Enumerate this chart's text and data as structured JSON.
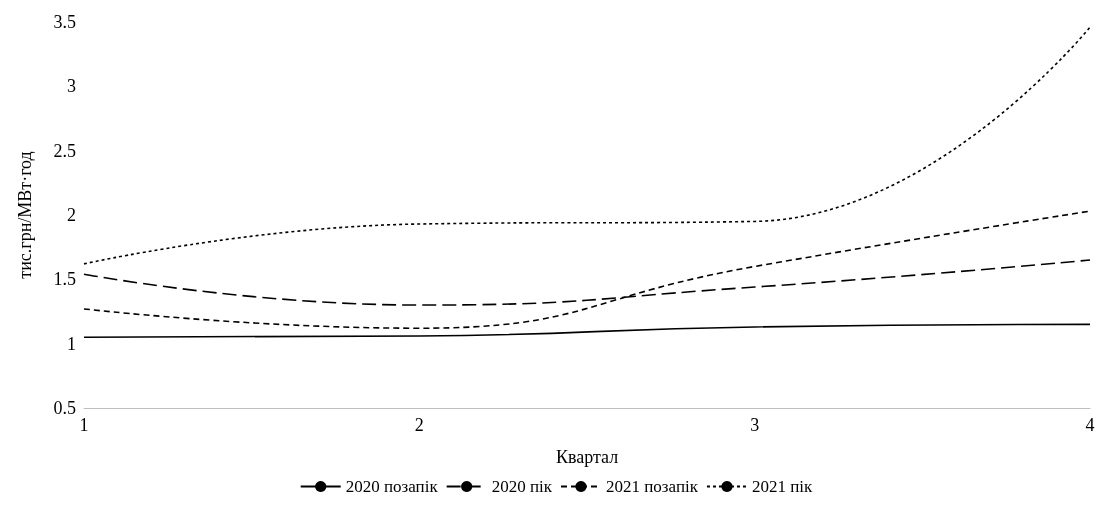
{
  "chart_data": {
    "type": "line",
    "xlabel": "Квартал",
    "ylabel": "тис.грн/МВт·год",
    "x": [
      1,
      2,
      3,
      4
    ],
    "xlim": [
      1,
      4
    ],
    "xticks": [
      1,
      2,
      3,
      4
    ],
    "ylim": [
      0.5,
      3.5
    ],
    "yticks": [
      0.5,
      1,
      1.5,
      2,
      2.5,
      3,
      3.5
    ],
    "grid": false,
    "legend": "bottom",
    "marker": "none",
    "series": [
      {
        "name": "2020 позапік",
        "color": "#000000",
        "line_style": "solid",
        "values": [
          1.05,
          1.06,
          1.13,
          1.15
        ]
      },
      {
        "name": "2020 пік",
        "color": "#000000",
        "line_style": "longdash",
        "values": [
          1.54,
          1.3,
          1.44,
          1.65
        ]
      },
      {
        "name": "2021 позапік",
        "color": "#000000",
        "line_style": "dashed",
        "values": [
          1.27,
          1.12,
          1.6,
          2.03
        ]
      },
      {
        "name": "2021 пік",
        "color": "#000000",
        "line_style": "dotted",
        "values": [
          1.62,
          1.93,
          1.95,
          3.46
        ]
      }
    ]
  }
}
